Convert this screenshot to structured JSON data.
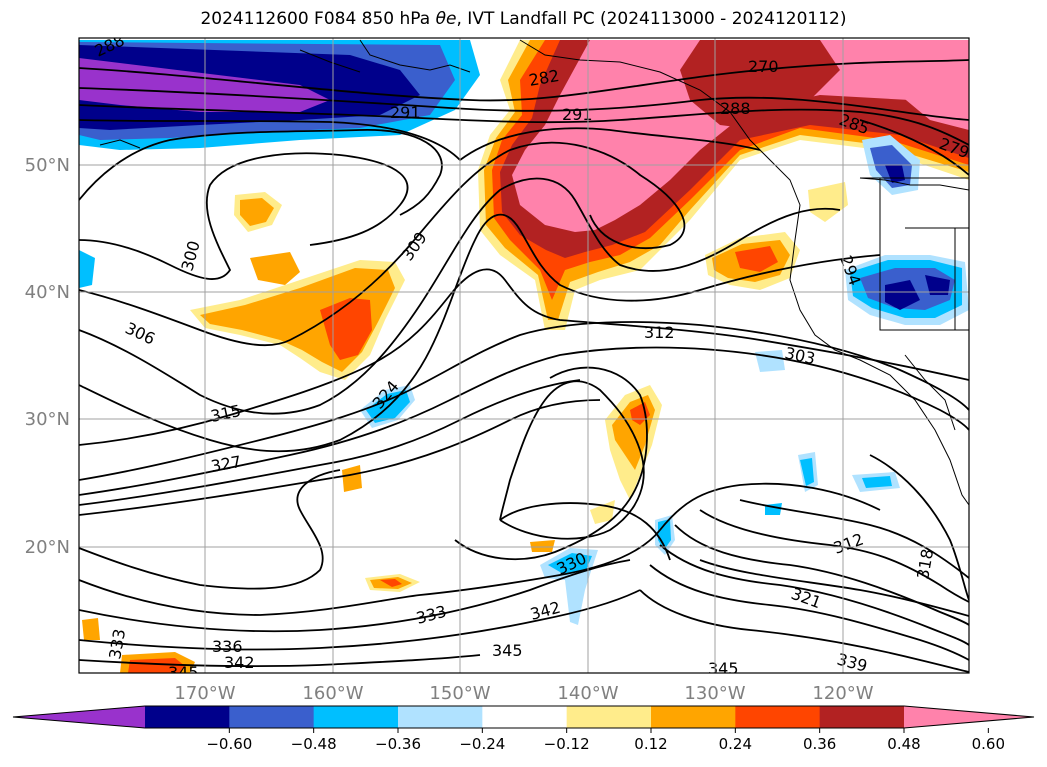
{
  "chart_data": {
    "type": "contour_map",
    "title": "2024112600 F084 850 hPa",
    "title_symbol": "θe",
    "title_suffix": ", IVT Landfall PC (2024113000 - 2024120112)",
    "lon_ticks": [
      "170°W",
      "160°W",
      "150°W",
      "140°W",
      "130°W",
      "120°W"
    ],
    "lat_ticks": [
      "50°N",
      "40°N",
      "30°N",
      "20°N"
    ],
    "grid": true,
    "colorbar": {
      "orientation": "horizontal",
      "extend": "both",
      "levels": [
        -0.72,
        -0.6,
        -0.48,
        -0.36,
        -0.24,
        -0.12,
        0.12,
        0.24,
        0.36,
        0.48,
        0.6,
        0.72
      ],
      "tick_labels": [
        "−0.60",
        "−0.48",
        "−0.36",
        "−0.24",
        "−0.12",
        "0.12",
        "0.24",
        "0.36",
        "0.48",
        "0.60"
      ],
      "colors": [
        "#9932CC",
        "#00008B",
        "#3A5FCD",
        "#00BFFF",
        "#B0E2FF",
        "#FFFFFF",
        "#FFEC8B",
        "#FFA500",
        "#FF4500",
        "#B22222",
        "#FF82AB"
      ]
    },
    "contour_labels": [
      "288",
      "282",
      "270",
      "291",
      "291",
      "288",
      "285",
      "279",
      "300",
      "309",
      "306",
      "294",
      "312",
      "303",
      "315",
      "324",
      "327",
      "330",
      "312",
      "318",
      "321",
      "333",
      "342",
      "336",
      "342",
      "345",
      "345",
      "339",
      "333",
      "345"
    ]
  }
}
